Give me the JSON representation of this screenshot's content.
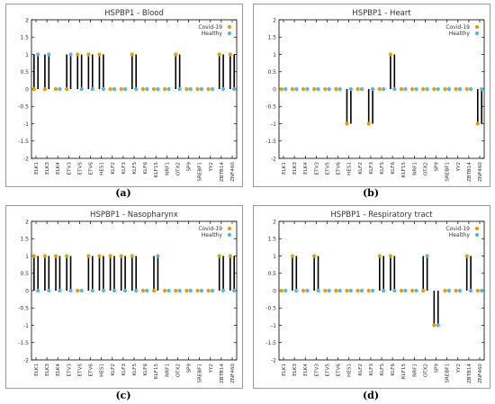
{
  "labels": [
    "ELK1",
    "ELK3",
    "ELK4",
    "ETV3",
    "ETV5",
    "ETV6",
    "HES1",
    "KLF2",
    "KLF3",
    "KLF5",
    "KLF6",
    "KLF15",
    "NRF1",
    "OTX2",
    "SP9",
    "SREBF1",
    "YY2",
    "ZBTB14",
    "ZNF460"
  ],
  "colors": {
    "covid": "#e69f00",
    "healthy": "#56b4e9",
    "stem": "#000000",
    "axis": "#000000",
    "text": "#333333"
  },
  "chart_data": [
    {
      "type": "scatter",
      "title": "HSPBP1 - Blood",
      "caption": "(a)",
      "ylim": [
        -2,
        2
      ],
      "yticks": [
        "2",
        "1.5",
        "1",
        "0.5",
        "0",
        "-0.5",
        "-1",
        "-1.5",
        "-2"
      ],
      "legend": [
        "Covid-19",
        "Healthy"
      ],
      "legend_position": "top-right",
      "categories": [
        "ELK1",
        "ELK3",
        "ELK4",
        "ETV3",
        "ETV5",
        "ETV6",
        "HES1",
        "KLF2",
        "KLF3",
        "KLF5",
        "KLF6",
        "KLF15",
        "NRF1",
        "OTX2",
        "SP9",
        "SREBF1",
        "YY2",
        "ZBTB14",
        "ZNF460"
      ],
      "series": [
        {
          "name": "Covid-19",
          "values": [
            0,
            0,
            0,
            0,
            1,
            1,
            1,
            0,
            0,
            1,
            0,
            0,
            0,
            1,
            0,
            0,
            0,
            1,
            1
          ]
        },
        {
          "name": "Healthy",
          "values": [
            1,
            1,
            0,
            1,
            0,
            0,
            0,
            0,
            0,
            0,
            0,
            0,
            0,
            0,
            0,
            0,
            0,
            0,
            0
          ]
        }
      ]
    },
    {
      "type": "scatter",
      "title": "HSPBP1 - Heart",
      "caption": "(b)",
      "ylim": [
        -2,
        2
      ],
      "yticks": [
        "2",
        "1.5",
        "1",
        "0.5",
        "0",
        "-0.5",
        "-1",
        "-1.5",
        "-2"
      ],
      "legend": [
        "Covid-19",
        "Healthy"
      ],
      "legend_position": "top-right",
      "categories": [
        "ELK1",
        "ELK3",
        "ELK4",
        "ETV3",
        "ETV5",
        "ETV6",
        "HES1",
        "KLF2",
        "KLF3",
        "KLF5",
        "KLF6",
        "KLF15",
        "NRF1",
        "OTX2",
        "SP9",
        "SREBF1",
        "YY2",
        "ZBTB14",
        "ZNF460"
      ],
      "series": [
        {
          "name": "Covid-19",
          "values": [
            0,
            0,
            0,
            0,
            0,
            0,
            -1,
            0,
            -1,
            0,
            1,
            0,
            0,
            0,
            0,
            0,
            0,
            0,
            -1
          ]
        },
        {
          "name": "Healthy",
          "values": [
            0,
            0,
            0,
            0,
            0,
            0,
            0,
            0,
            0,
            0,
            0,
            0,
            0,
            0,
            0,
            0,
            0,
            0,
            0
          ]
        }
      ]
    },
    {
      "type": "scatter",
      "title": "HSPBP1 - Nasopharynx",
      "caption": "(c)",
      "ylim": [
        -2,
        2
      ],
      "yticks": [
        "2",
        "1.5",
        "1",
        "0.5",
        "0",
        "-0.5",
        "-1",
        "-1.5",
        "-2"
      ],
      "legend": [
        "Covid-19",
        "Healthy"
      ],
      "legend_position": "top-right",
      "categories": [
        "ELK1",
        "ELK3",
        "ELK4",
        "ETV3",
        "ETV5",
        "ETV6",
        "HES1",
        "KLF2",
        "KLF3",
        "KLF5",
        "KLF6",
        "KLF15",
        "NRF1",
        "OTX2",
        "SP9",
        "SREBF1",
        "YY2",
        "ZBTB14",
        "ZNF460"
      ],
      "series": [
        {
          "name": "Covid-19",
          "values": [
            1,
            1,
            1,
            1,
            0,
            1,
            1,
            1,
            1,
            1,
            0,
            0,
            0,
            0,
            0,
            0,
            0,
            1,
            1
          ]
        },
        {
          "name": "Healthy",
          "values": [
            0,
            0,
            0,
            0,
            0,
            0,
            0,
            0,
            0,
            0,
            0,
            1,
            0,
            0,
            0,
            0,
            0,
            0,
            0
          ]
        }
      ]
    },
    {
      "type": "scatter",
      "title": "HSPBP1 - Respiratory tract",
      "caption": "(d)",
      "ylim": [
        -2,
        2
      ],
      "yticks": [
        "2",
        "1.5",
        "1",
        "0.5",
        "0",
        "-0.5",
        "-1",
        "-1.5",
        "-2"
      ],
      "legend": [
        "Covid-19",
        "Healthy"
      ],
      "legend_position": "top-right",
      "categories": [
        "ELK1",
        "ELK3",
        "ELK4",
        "ETV3",
        "ETV5",
        "ETV6",
        "HES1",
        "KLF2",
        "KLF3",
        "KLF5",
        "KLF6",
        "KLF15",
        "NRF1",
        "OTX2",
        "SP9",
        "SREBF1",
        "YY2",
        "ZBTB14",
        "ZNF460"
      ],
      "series": [
        {
          "name": "Covid-19",
          "values": [
            0,
            1,
            0,
            1,
            0,
            0,
            0,
            0,
            0,
            1,
            1,
            0,
            0,
            0,
            -1,
            0,
            0,
            1,
            0
          ]
        },
        {
          "name": "Healthy",
          "values": [
            0,
            0,
            0,
            0,
            0,
            0,
            0,
            0,
            0,
            0,
            0,
            0,
            0,
            1,
            -1,
            0,
            0,
            0,
            0
          ]
        }
      ]
    }
  ]
}
